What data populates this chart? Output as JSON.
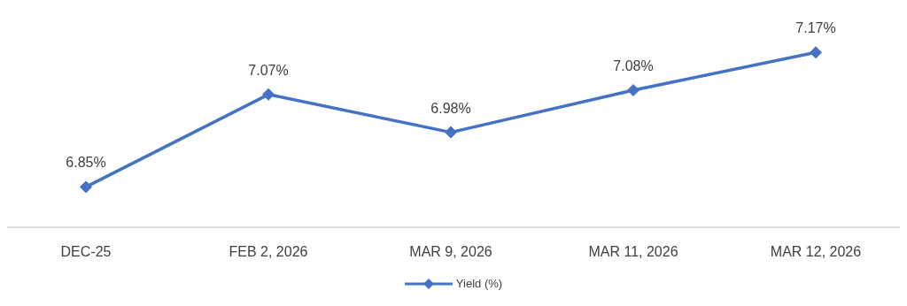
{
  "chart_data": {
    "type": "line",
    "categories": [
      "DEC-25",
      "FEB 2, 2026",
      "MAR 9, 2026",
      "MAR 11, 2026",
      "MAR 12, 2026"
    ],
    "series": [
      {
        "name": "Yield (%)",
        "color": "#4472c4",
        "values": [
          6.85,
          7.07,
          6.98,
          7.08,
          7.17
        ],
        "value_labels": [
          "6.85%",
          "7.07%",
          "6.98%",
          "7.08%",
          "7.17%"
        ]
      }
    ],
    "marker": "diamond",
    "line_style": "solid",
    "legend": "bottom",
    "grid": false
  }
}
